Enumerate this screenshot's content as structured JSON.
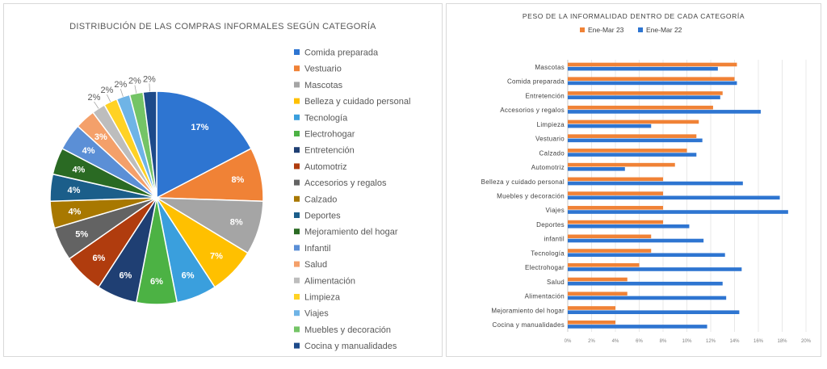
{
  "chart_data": [
    {
      "type": "pie",
      "title": "DISTRIBUCIÓN DE LAS COMPRAS INFORMALES SEGÚN CATEGORÍA",
      "legend_position": "right",
      "slices": [
        {
          "label": "Comida preparada",
          "value": 17,
          "display": "17%",
          "color": "#2e75d1"
        },
        {
          "label": "Vestuario",
          "value": 8,
          "display": "8%",
          "color": "#f08236"
        },
        {
          "label": "Mascotas",
          "value": 8,
          "display": "8%",
          "color": "#a5a5a5"
        },
        {
          "label": "Belleza y cuidado personal",
          "value": 7,
          "display": "7%",
          "color": "#ffc000"
        },
        {
          "label": "Tecnología",
          "value": 6,
          "display": "6%",
          "color": "#3a9fdd"
        },
        {
          "label": "Electrohogar",
          "value": 6,
          "display": "6%",
          "color": "#4cb244"
        },
        {
          "label": "Entretención",
          "value": 6,
          "display": "6%",
          "color": "#1f3f73"
        },
        {
          "label": "Automotriz",
          "value": 6,
          "display": "6%",
          "color": "#b03c0e"
        },
        {
          "label": "Accesorios y regalos",
          "value": 5,
          "display": "5%",
          "color": "#636363"
        },
        {
          "label": "Calzado",
          "value": 4,
          "display": "4%",
          "color": "#a87800"
        },
        {
          "label": "Deportes",
          "value": 4,
          "display": "4%",
          "color": "#1b5e8a"
        },
        {
          "label": "Mejoramiento del hogar",
          "value": 4,
          "display": "4%",
          "color": "#2a6a23"
        },
        {
          "label": "Infantil",
          "value": 4,
          "display": "4%",
          "color": "#5b8fd6"
        },
        {
          "label": "Salud",
          "value": 3,
          "display": "3%",
          "color": "#f4a06a"
        },
        {
          "label": "Alimentación",
          "value": 2,
          "display": "2%",
          "color": "#bdbdbd"
        },
        {
          "label": "Limpieza",
          "value": 2,
          "display": "2%",
          "color": "#ffd224"
        },
        {
          "label": "Viajes",
          "value": 2,
          "display": "2%",
          "color": "#6fb4e6"
        },
        {
          "label": "Muebles y decoración",
          "value": 2,
          "display": "2%",
          "color": "#74c466"
        },
        {
          "label": "Cocina y manualidades",
          "value": 2,
          "display": "2%",
          "color": "#1d4a8a"
        }
      ]
    },
    {
      "type": "bar",
      "orientation": "horizontal",
      "title": "PESO DE LA INFORMALIDAD DENTRO DE CADA CATEGORÍA",
      "legend_position": "top",
      "grid": true,
      "xlim": [
        0,
        20
      ],
      "x_ticks": [
        "0%",
        "2%",
        "4%",
        "6%",
        "8%",
        "10%",
        "12%",
        "14%",
        "16%",
        "18%",
        "20%"
      ],
      "categories": [
        "Mascotas",
        "Comida preparada",
        "Entretención",
        "Accesorios y regalos",
        "Limpieza",
        "Vestuario",
        "Calzado",
        "Automotriz",
        "Belleza y cuidado personal",
        "Muebles y decoración",
        "Viajes",
        "Deportes",
        "infantil",
        "Tecnología",
        "Electrohogar",
        "Salud",
        "Alimentación",
        "Mejoramiento del hogar",
        "Cocina y manualidades"
      ],
      "series": [
        {
          "name": "Ene-Mar 23",
          "color": "#f08236",
          "values": [
            14.2,
            14.0,
            13.0,
            12.2,
            11.0,
            10.8,
            10.0,
            9.0,
            8.0,
            8.0,
            8.0,
            8.0,
            7.0,
            7.0,
            6.0,
            5.0,
            5.0,
            4.0,
            4.0
          ]
        },
        {
          "name": "Ene-Mar 22",
          "color": "#2e75d1",
          "values": [
            12.6,
            14.2,
            12.8,
            16.2,
            7.0,
            11.3,
            10.8,
            4.8,
            14.7,
            17.8,
            18.5,
            10.2,
            11.4,
            13.2,
            14.6,
            13.0,
            13.3,
            14.4,
            11.7
          ]
        }
      ]
    }
  ]
}
